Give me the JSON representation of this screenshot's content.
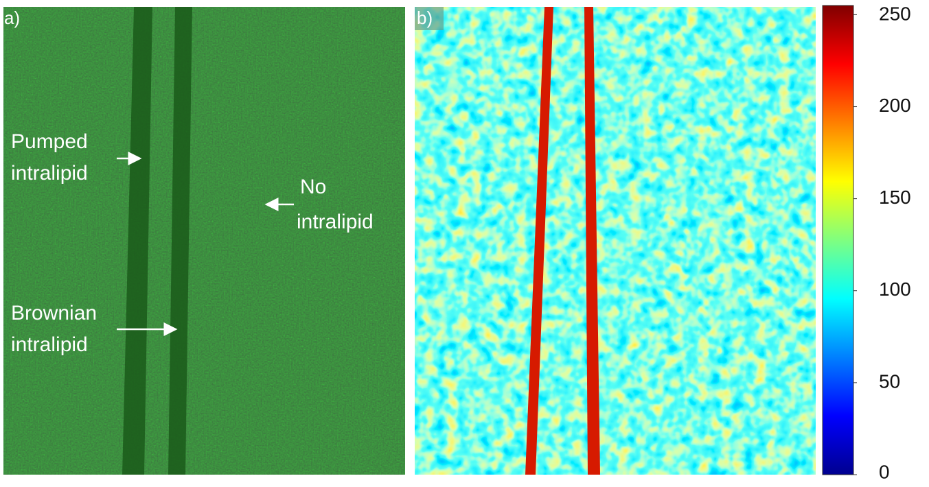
{
  "panel_a": {
    "label": "a)",
    "annotations": [
      {
        "lines": [
          "Pumped",
          "intralipid"
        ]
      },
      {
        "lines": [
          "No",
          "intralipid"
        ]
      },
      {
        "lines": [
          "Brownian",
          "intralipid"
        ]
      }
    ]
  },
  "panel_b": {
    "label": "b)",
    "colorbar": {
      "lim": [
        0,
        255
      ],
      "ticks": [
        0,
        50,
        100,
        150,
        200,
        250
      ]
    }
  }
}
